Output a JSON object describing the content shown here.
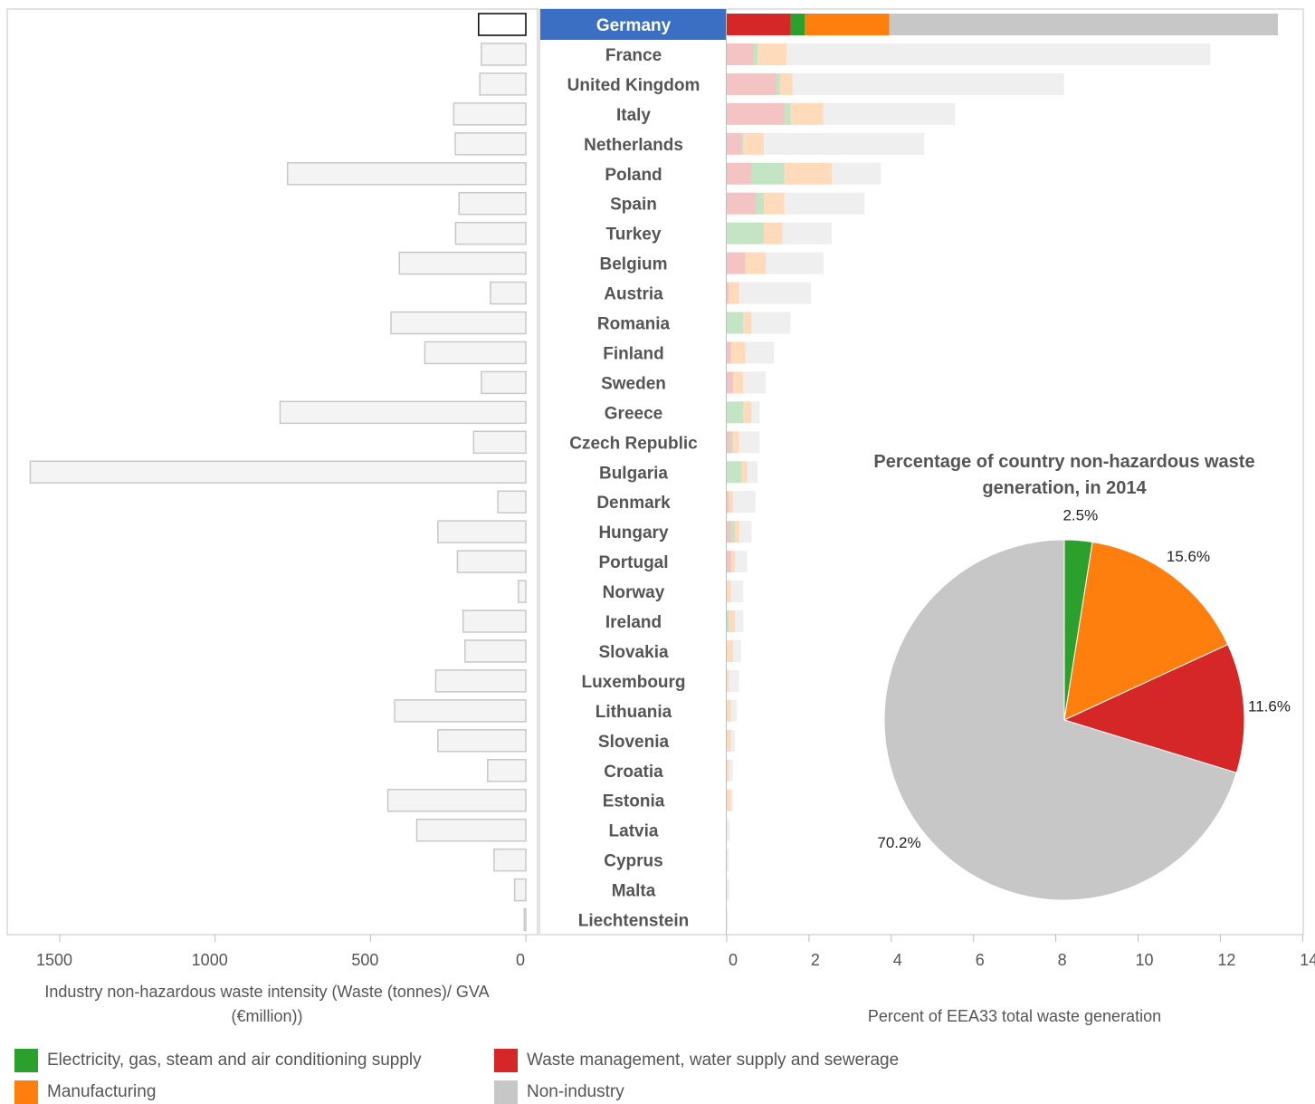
{
  "chart_data": {
    "type": "bar",
    "title": "",
    "categories": [
      "Germany",
      "France",
      "United Kingdom",
      "Italy",
      "Netherlands",
      "Poland",
      "Spain",
      "Turkey",
      "Belgium",
      "Austria",
      "Romania",
      "Finland",
      "Sweden",
      "Greece",
      "Czech Republic",
      "Bulgaria",
      "Denmark",
      "Hungary",
      "Portugal",
      "Norway",
      "Ireland",
      "Slovakia",
      "Luxembourg",
      "Lithuania",
      "Slovenia",
      "Croatia",
      "Estonia",
      "Latvia",
      "Cyprus",
      "Malta",
      "Liechtenstein"
    ],
    "highlighted_category": "Germany",
    "left_chart": {
      "xlabel": "Industry non-hazardous waste intensity (Waste (tonnes)/ GVA (€million))",
      "xlim": [
        1600,
        0
      ],
      "xticks": [
        "1500",
        "1000",
        "500",
        "0"
      ],
      "xtick_values": [
        1500,
        1000,
        500,
        0
      ],
      "values": [
        152,
        143,
        148,
        232,
        227,
        767,
        215,
        226,
        407,
        114,
        434,
        325,
        143,
        791,
        168,
        1595,
        90,
        283,
        220,
        24,
        202,
        196,
        290,
        422,
        283,
        123,
        444,
        351,
        102,
        36,
        5
      ]
    },
    "right_chart": {
      "xlabel": "Percent of EEA33 total waste generation",
      "xlim": [
        0,
        14
      ],
      "xticks": [
        "0",
        "2",
        "4",
        "6",
        "8",
        "10",
        "12",
        "14"
      ],
      "xtick_values": [
        0,
        2,
        4,
        6,
        8,
        10,
        12,
        14
      ],
      "stacked": true,
      "series": [
        {
          "name": "Waste management, water supply and sewerage",
          "color": "#d62728",
          "values": [
            1.55,
            0.65,
            1.2,
            1.4,
            0.35,
            0.6,
            0.7,
            0.0,
            0.45,
            0.05,
            0.0,
            0.1,
            0.15,
            0.0,
            0.1,
            0.0,
            0.05,
            0.1,
            0.1,
            0.0,
            0.0,
            0.0,
            0.0,
            0.0,
            0.0,
            0.0,
            0.0,
            0.0,
            0.0,
            0.0,
            0.0
          ]
        },
        {
          "name": "Electricity, gas, steam and air conditioning supply",
          "color": "#2ca02c",
          "values": [
            0.35,
            0.1,
            0.1,
            0.15,
            0.05,
            0.8,
            0.2,
            0.9,
            0.0,
            0.0,
            0.4,
            0.0,
            0.0,
            0.4,
            0.05,
            0.35,
            0.0,
            0.1,
            0.0,
            0.0,
            0.05,
            0.0,
            0.0,
            0.0,
            0.0,
            0.0,
            0.0,
            0.0,
            0.0,
            0.0,
            0.0
          ]
        },
        {
          "name": "Manufacturing",
          "color": "#ff7f0e",
          "values": [
            2.05,
            0.7,
            0.3,
            0.8,
            0.5,
            1.15,
            0.5,
            0.45,
            0.5,
            0.25,
            0.2,
            0.35,
            0.25,
            0.2,
            0.15,
            0.15,
            0.1,
            0.1,
            0.1,
            0.1,
            0.15,
            0.15,
            0.05,
            0.1,
            0.1,
            0.05,
            0.1,
            0.0,
            0.0,
            0.0,
            0.0
          ]
        },
        {
          "name": "Non-industry",
          "color": "#c7c7c7",
          "values": [
            9.45,
            10.3,
            6.6,
            3.2,
            3.9,
            1.2,
            1.95,
            1.2,
            1.4,
            1.75,
            0.95,
            0.7,
            0.55,
            0.2,
            0.5,
            0.25,
            0.55,
            0.3,
            0.3,
            0.3,
            0.2,
            0.2,
            0.25,
            0.15,
            0.1,
            0.1,
            0.05,
            0.07,
            0.05,
            0.06,
            0.03
          ]
        }
      ]
    },
    "pie_chart": {
      "type": "pie",
      "title": "Percentage of country non-hazardous waste generation, in 2014",
      "title_lines": [
        "Percentage of country non-hazardous waste",
        "generation, in 2014"
      ],
      "slices": [
        {
          "name": "Electricity, gas, steam and air conditioning supply",
          "value": 2.5,
          "label": "2.5%",
          "color": "#2ca02c"
        },
        {
          "name": "Manufacturing",
          "value": 15.6,
          "label": "15.6%",
          "color": "#ff7f0e"
        },
        {
          "name": "Waste management, water supply and sewerage",
          "value": 11.6,
          "label": "11.6%",
          "color": "#d62728"
        },
        {
          "name": "Non-industry",
          "value": 70.2,
          "label": "70.2%",
          "color": "#c7c7c7"
        }
      ]
    },
    "legend": {
      "position": "bottom",
      "items": [
        {
          "label": "Electricity, gas, steam and air conditioning supply",
          "color": "#2ca02c"
        },
        {
          "label": "Waste management, water supply and sewerage",
          "color": "#d62728"
        },
        {
          "label": "Manufacturing",
          "color": "#ff7f0e"
        },
        {
          "label": "Non-industry",
          "color": "#c7c7c7"
        }
      ]
    },
    "grid": false
  }
}
